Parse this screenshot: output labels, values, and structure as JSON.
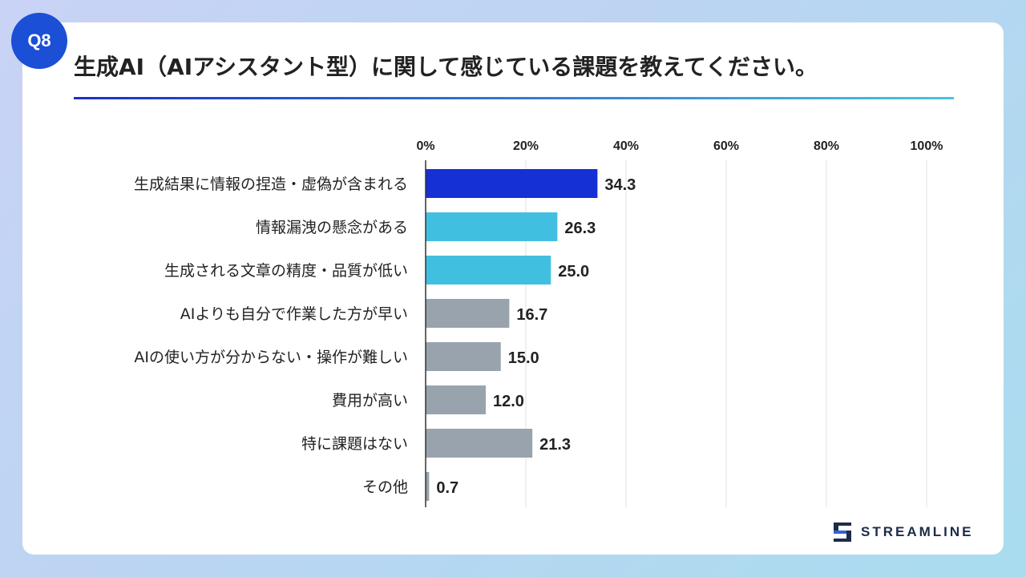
{
  "badge": "Q8",
  "title": "生成AI（AIアシスタント型）に関して感じている課題を教えてください。",
  "brand": "STREAMLINE",
  "colors": {
    "top": "#1530d4",
    "second": "#41bfe0",
    "rest": "#98a3ad",
    "axis": "#333333",
    "grid": "#e2e2e2"
  },
  "chart_data": {
    "type": "bar",
    "orientation": "horizontal",
    "categories": [
      "生成結果に情報の捏造・虚偽が含まれる",
      "情報漏洩の懸念がある",
      "生成される文章の精度・品質が低い",
      "AIよりも自分で作業した方が早い",
      "AIの使い方が分からない・操作が難しい",
      "費用が高い",
      "特に課題はない",
      "その他"
    ],
    "values": [
      34.3,
      26.3,
      25.0,
      16.7,
      15.0,
      12.0,
      21.3,
      0.7
    ],
    "value_labels": [
      "34.3",
      "26.3",
      "25.0",
      "16.7",
      "15.0",
      "12.0",
      "21.3",
      "0.7"
    ],
    "bar_colors": [
      "#1530d4",
      "#41bfe0",
      "#41bfe0",
      "#98a3ad",
      "#98a3ad",
      "#98a3ad",
      "#98a3ad",
      "#98a3ad"
    ],
    "xlim": [
      0,
      100
    ],
    "xticks": [
      "0%",
      "20%",
      "40%",
      "60%",
      "80%",
      "100%"
    ],
    "grid": true,
    "xaxis_position": "top"
  }
}
